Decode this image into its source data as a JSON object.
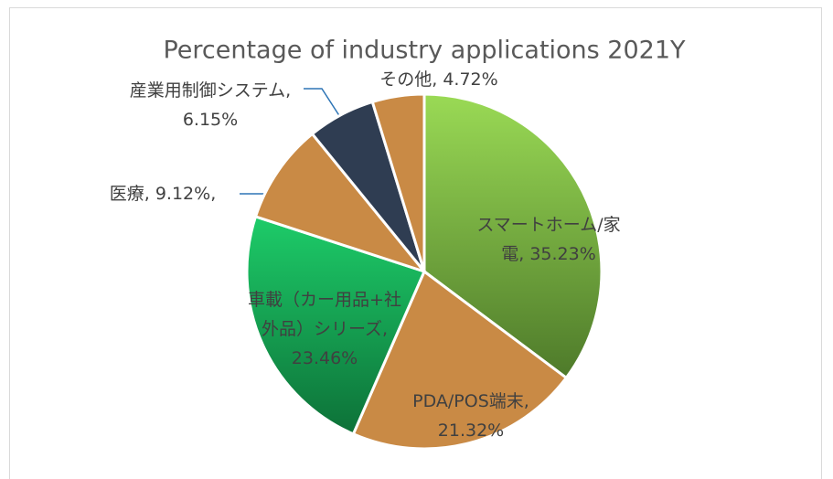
{
  "chart_data": {
    "type": "pie",
    "title": "Percentage of industry applications 2021Y",
    "values": [
      35.23,
      21.32,
      23.46,
      9.12,
      6.15,
      4.72
    ],
    "value_labels": [
      "スマートホーム/家電, 35.23%",
      "PDA/POS端末, 21.32%",
      "車載（カー用品+社外品）シリーズ, 23.46%",
      "医療, 9.12%,",
      "産業用制御システム, 6.15%",
      "その他, 4.72%"
    ],
    "colors": [
      "#74a83c",
      "#c98a45",
      "#18a653",
      "#c98a45",
      "#2f3d52",
      "#c98a45"
    ]
  }
}
